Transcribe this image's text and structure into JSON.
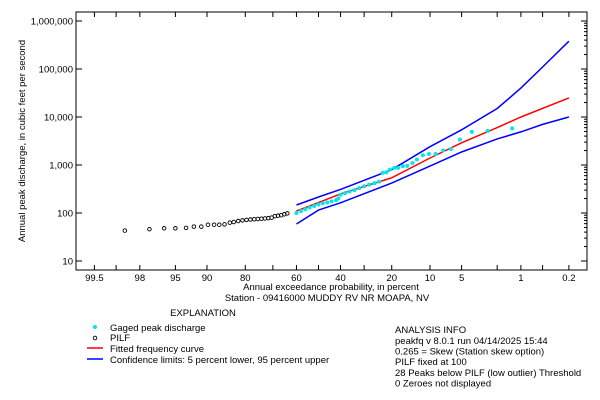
{
  "chart_data": {
    "type": "scatter",
    "title": "",
    "xlabel": "Annual exceedance probability, in percent",
    "subtitle": "Station -  09416000 MUDDY RV NR MOAPA, NV",
    "ylabel": "Annual peak discharge, in cubic feet per second",
    "x_scale": "normal-probability (exceedance, reversed)",
    "y_scale": "log",
    "ylim": [
      10,
      1000000
    ],
    "grid": false,
    "x_ticks": [
      99.5,
      98,
      95,
      90,
      80,
      60,
      40,
      20,
      10,
      5,
      1,
      0.2
    ],
    "x_tick_labels": [
      "99.5",
      "98",
      "95",
      "90",
      "80",
      "60",
      "40",
      "20",
      "10",
      "5",
      "1",
      "0.2"
    ],
    "x_minor_ticks": [
      99,
      70,
      50,
      30,
      2,
      0.5
    ],
    "y_ticks": [
      10,
      100,
      1000,
      10000,
      100000,
      1000000
    ],
    "y_tick_labels": [
      "10",
      "100",
      "1,000",
      "10,000",
      "100,000",
      "1,000,000"
    ],
    "colors": {
      "gaged": "#00e5ee",
      "pilf": "#000000",
      "fitted": "#ff0000",
      "confidence": "#0000ff"
    },
    "series": [
      {
        "name": "Gaged peak discharge",
        "kind": "points-filled",
        "p": [
          1.3,
          2.6,
          3.9,
          5.2,
          6.4,
          7.6,
          8.9,
          10.2,
          11.5,
          12.9,
          14,
          15.4,
          16.6,
          18,
          19.2,
          20.6,
          21.8,
          23,
          24.3,
          26,
          28,
          30,
          32,
          34,
          36,
          38,
          40,
          41,
          42,
          44,
          46,
          48,
          50,
          52,
          54,
          56,
          58,
          60
        ],
        "q": [
          5800,
          5100,
          4900,
          3400,
          2150,
          2000,
          1700,
          1700,
          1600,
          1300,
          1100,
          960,
          950,
          870,
          870,
          800,
          700,
          690,
          450,
          420,
          390,
          360,
          330,
          300,
          280,
          260,
          240,
          200,
          185,
          175,
          165,
          160,
          150,
          140,
          130,
          120,
          110,
          100
        ]
      },
      {
        "name": "PILF",
        "kind": "points-open",
        "p": [
          98.7,
          97.4,
          96.2,
          95,
          93.6,
          92.4,
          91.1,
          89.8,
          88.5,
          87.3,
          86,
          84.6,
          83.5,
          82.2,
          80.9,
          79.6,
          78.3,
          77,
          75.7,
          74.4,
          73.1,
          71.8,
          70.5,
          69.2,
          67.9,
          66.6,
          65.3,
          64
        ],
        "q": [
          43,
          46,
          48,
          48,
          49,
          52,
          52,
          57,
          57,
          57,
          58,
          63,
          65,
          68,
          70,
          72,
          73,
          74,
          75,
          76,
          77,
          78,
          80,
          86,
          88,
          90,
          94,
          98
        ]
      },
      {
        "name": "Fitted frequency curve",
        "kind": "line",
        "p": [
          60,
          50,
          40,
          20,
          10,
          5,
          2,
          1,
          0.2
        ],
        "q": [
          110,
          165,
          250,
          540,
          1400,
          2900,
          6000,
          10000,
          25000
        ]
      },
      {
        "name": "Confidence limits: 5 percent lower, 95 percent upper",
        "kind": "line",
        "part": "upper",
        "p": [
          60,
          50,
          40,
          20,
          10,
          5,
          2,
          1,
          0.5,
          0.2
        ],
        "q": [
          147,
          215,
          310,
          800,
          2400,
          5400,
          15000,
          40000,
          110000,
          380000
        ]
      },
      {
        "name": "Confidence limits: 5 percent lower, 95 percent upper",
        "kind": "line",
        "part": "lower",
        "p": [
          60,
          50,
          40,
          20,
          10,
          5,
          2,
          1,
          0.5,
          0.2
        ],
        "q": [
          59,
          115,
          163,
          420,
          950,
          1870,
          3500,
          4900,
          7000,
          10000
        ]
      }
    ]
  },
  "legend": {
    "title": "EXPLANATION",
    "items": [
      {
        "label": "Gaged peak discharge",
        "symbol": "filled-dot"
      },
      {
        "label": "PILF",
        "symbol": "open-circle"
      },
      {
        "label": "Fitted frequency curve",
        "symbol": "red-line"
      },
      {
        "label": "Confidence limits: 5 percent lower, 95 percent upper",
        "symbol": "blue-line"
      }
    ]
  },
  "analysis_info": {
    "title": "ANALYSIS INFO",
    "lines": [
      "peakfq v 8.0.1 run 04/14/2025 15:44",
      "0.265 = Skew (Station skew option)",
      "PILF fixed at 100",
      "28 Peaks below PILF (low outlier) Threshold",
      "0 Zeroes not displayed"
    ]
  }
}
